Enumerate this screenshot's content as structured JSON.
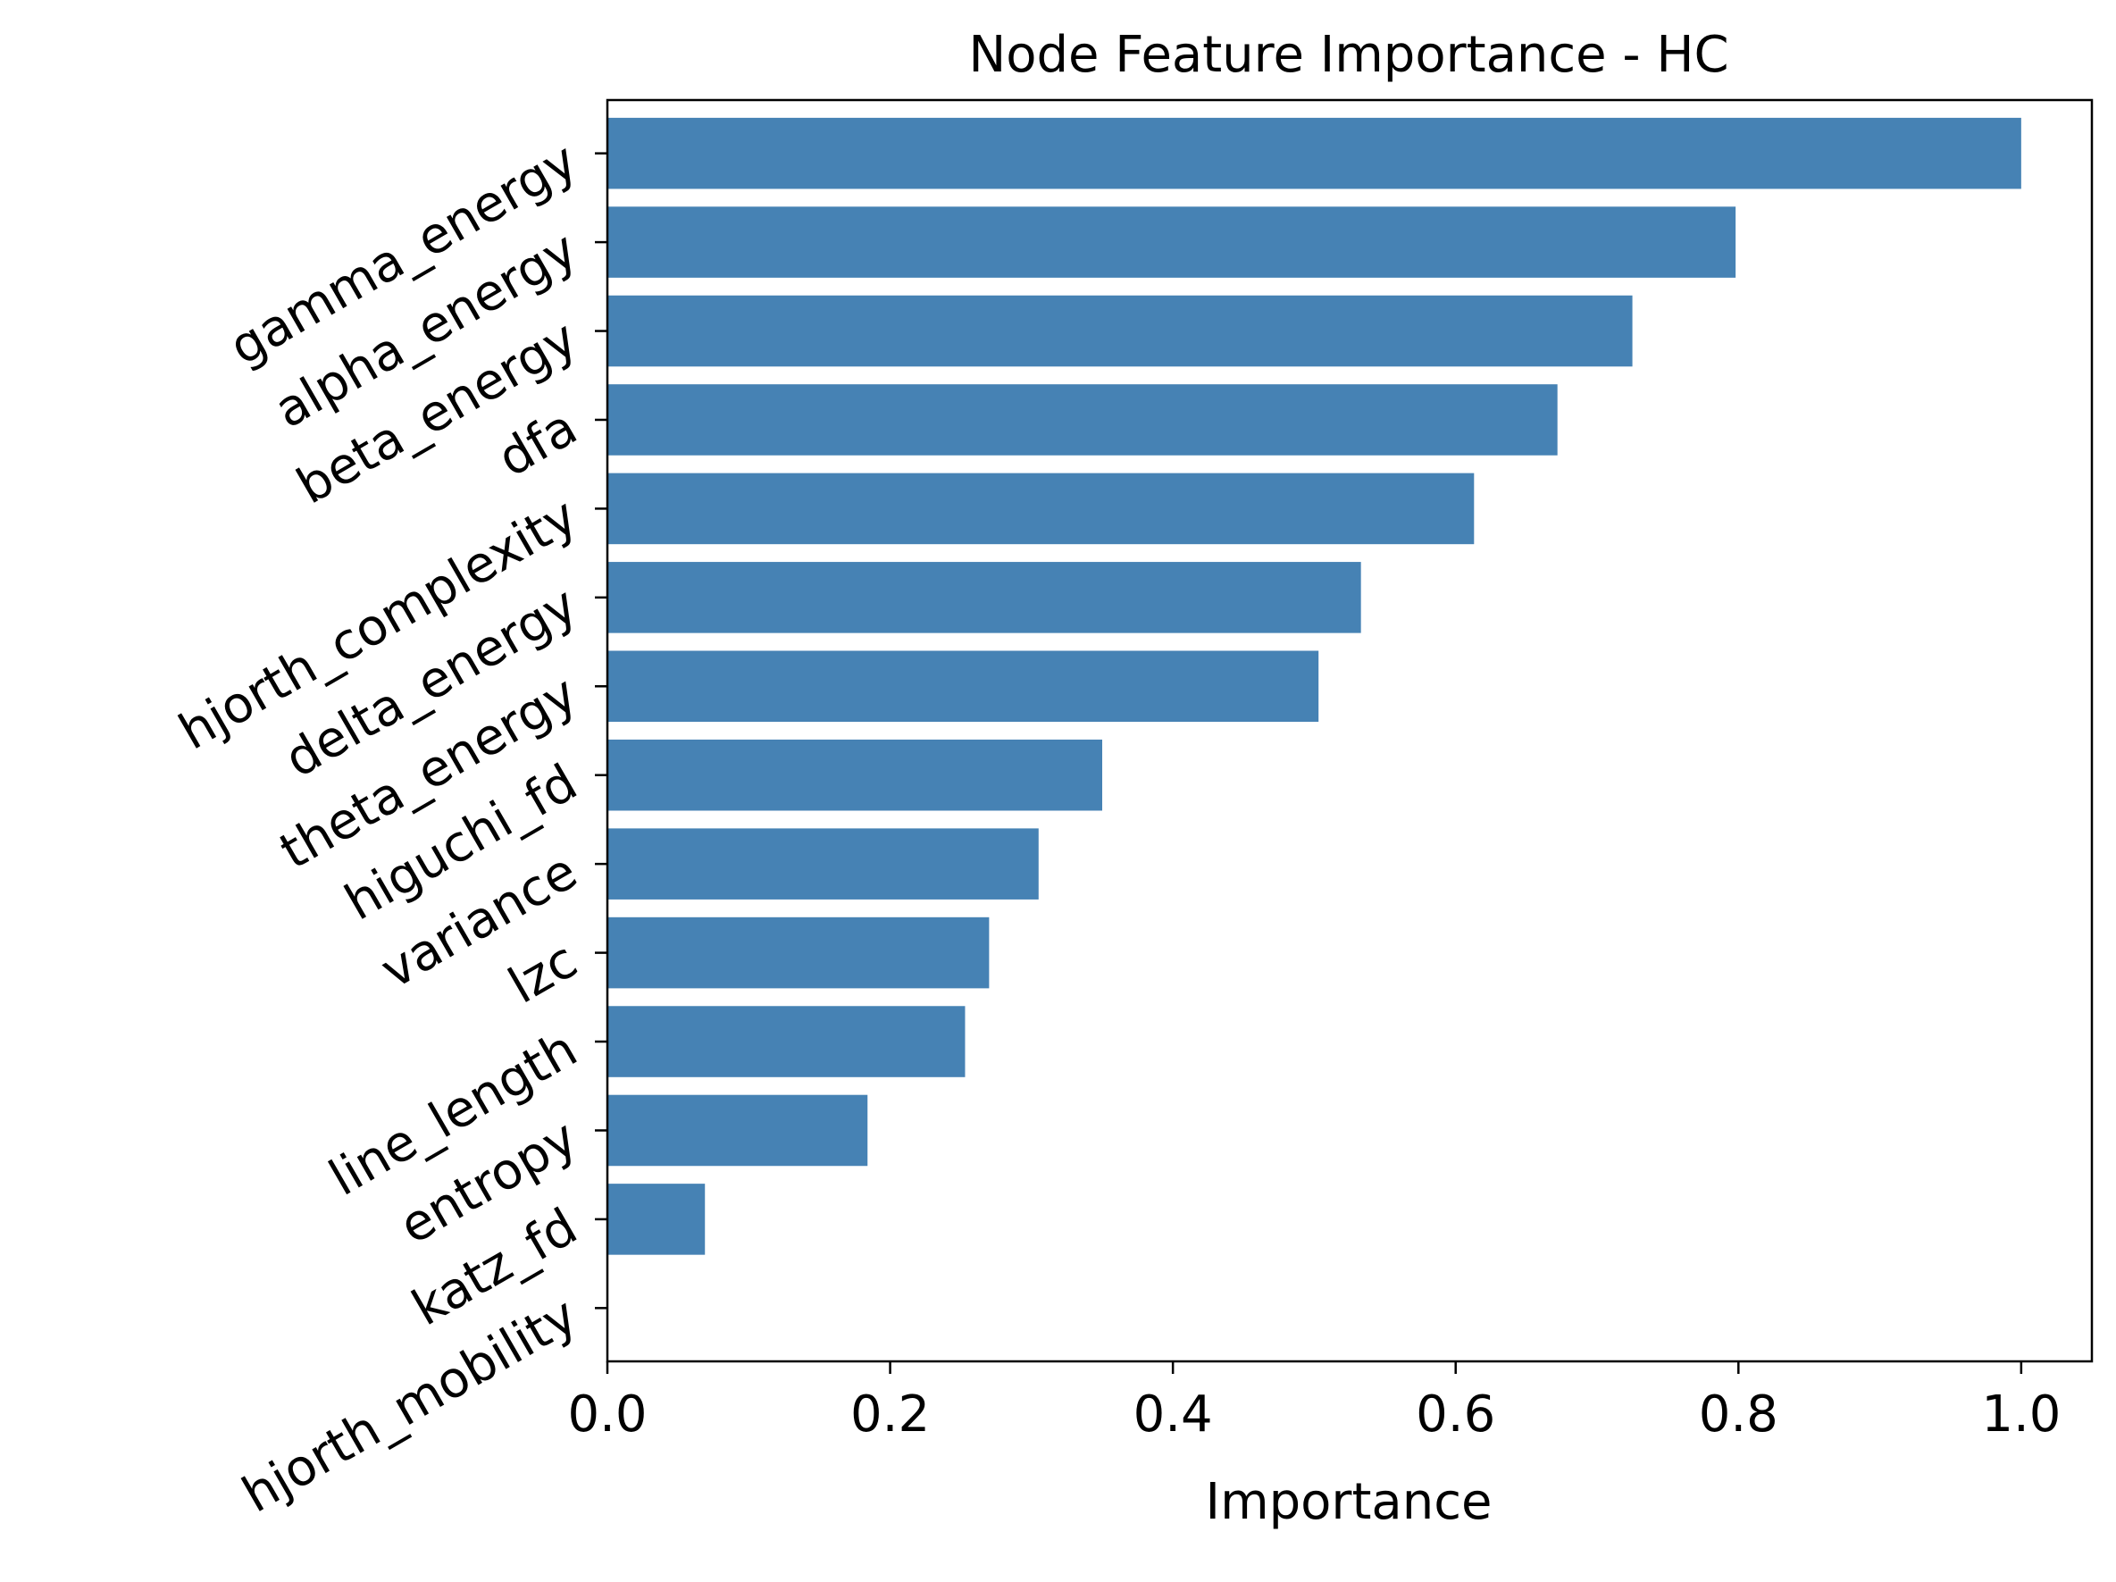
{
  "chart_data": {
    "type": "bar",
    "orientation": "horizontal",
    "title": "Node Feature Importance - HC",
    "xlabel": "Importance",
    "ylabel": "",
    "categories": [
      "gamma_energy",
      "alpha_energy",
      "beta_energy",
      "dfa",
      "hjorth_complexity",
      "delta_energy",
      "theta_energy",
      "higuchi_fd",
      "variance",
      "lzc",
      "line_length",
      "entropy",
      "katz_fd",
      "hjorth_mobility"
    ],
    "values": [
      1.0,
      0.798,
      0.725,
      0.672,
      0.613,
      0.533,
      0.503,
      0.35,
      0.305,
      0.27,
      0.253,
      0.184,
      0.069,
      0.0
    ],
    "xlim": [
      0.0,
      1.05
    ],
    "xticks": [
      "0.0",
      "0.2",
      "0.4",
      "0.6",
      "0.8",
      "1.0"
    ],
    "grid": false,
    "legend": null,
    "bar_color": "#4682b4"
  }
}
